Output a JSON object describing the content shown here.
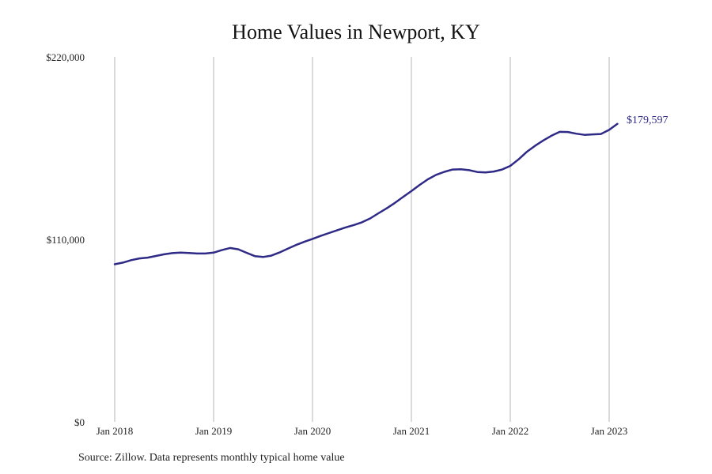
{
  "chart_data": {
    "type": "line",
    "title": "Home Values in Newport, KY",
    "subtitle": "",
    "xlabel": "",
    "ylabel": "",
    "ylim": [
      0,
      220000
    ],
    "y_ticks": [
      0,
      110000,
      220000
    ],
    "y_tick_labels": [
      "$0",
      "$110,000",
      "$220,000"
    ],
    "x_ticks": [
      "2018-01",
      "2019-01",
      "2020-01",
      "2021-01",
      "2022-01",
      "2023-01"
    ],
    "x_tick_labels": [
      "Jan 2018",
      "Jan 2019",
      "Jan 2020",
      "Jan 2021",
      "Jan 2022",
      "Jan 2023"
    ],
    "vertical_gridlines": true,
    "horizontal_gridlines": false,
    "legend": "none",
    "line_color": "#2e2a86",
    "end_label": "$179,597",
    "series": [
      {
        "x": [
          "2018-01",
          "2018-02",
          "2018-03",
          "2018-04",
          "2018-05",
          "2018-06",
          "2018-07",
          "2018-08",
          "2018-09",
          "2018-10",
          "2018-11",
          "2018-12",
          "2019-01",
          "2019-02",
          "2019-03",
          "2019-04",
          "2019-05",
          "2019-06",
          "2019-07",
          "2019-08",
          "2019-09",
          "2019-10",
          "2019-11",
          "2019-12",
          "2020-01",
          "2020-02",
          "2020-03",
          "2020-04",
          "2020-05",
          "2020-06",
          "2020-07",
          "2020-08",
          "2020-09",
          "2020-10",
          "2020-11",
          "2020-12",
          "2021-01",
          "2021-02",
          "2021-03",
          "2021-04",
          "2021-05",
          "2021-06",
          "2021-07",
          "2021-08",
          "2021-09",
          "2021-10",
          "2021-11",
          "2021-12",
          "2022-01",
          "2022-02",
          "2022-03",
          "2022-04",
          "2022-05",
          "2022-06",
          "2022-07",
          "2022-08",
          "2022-09",
          "2022-10",
          "2022-11",
          "2022-12",
          "2023-01",
          "2023-02"
        ],
        "y": [
          95000,
          96000,
          97500,
          98500,
          99000,
          100000,
          101000,
          101700,
          102000,
          101800,
          101500,
          101500,
          102000,
          103500,
          104800,
          104000,
          101900,
          99900,
          99400,
          100200,
          102100,
          104400,
          106600,
          108500,
          110300,
          112100,
          113800,
          115500,
          117200,
          118600,
          120300,
          122600,
          125700,
          128700,
          132000,
          135600,
          139100,
          142800,
          146200,
          148900,
          150700,
          152100,
          152300,
          151700,
          150600,
          150400,
          150900,
          152100,
          154300,
          158200,
          162700,
          166400,
          169600,
          172500,
          174800,
          174700,
          173700,
          173000,
          173300,
          173500,
          176000,
          179597
        ]
      }
    ]
  },
  "source_note": "Source: Zillow. Data represents monthly typical home value"
}
